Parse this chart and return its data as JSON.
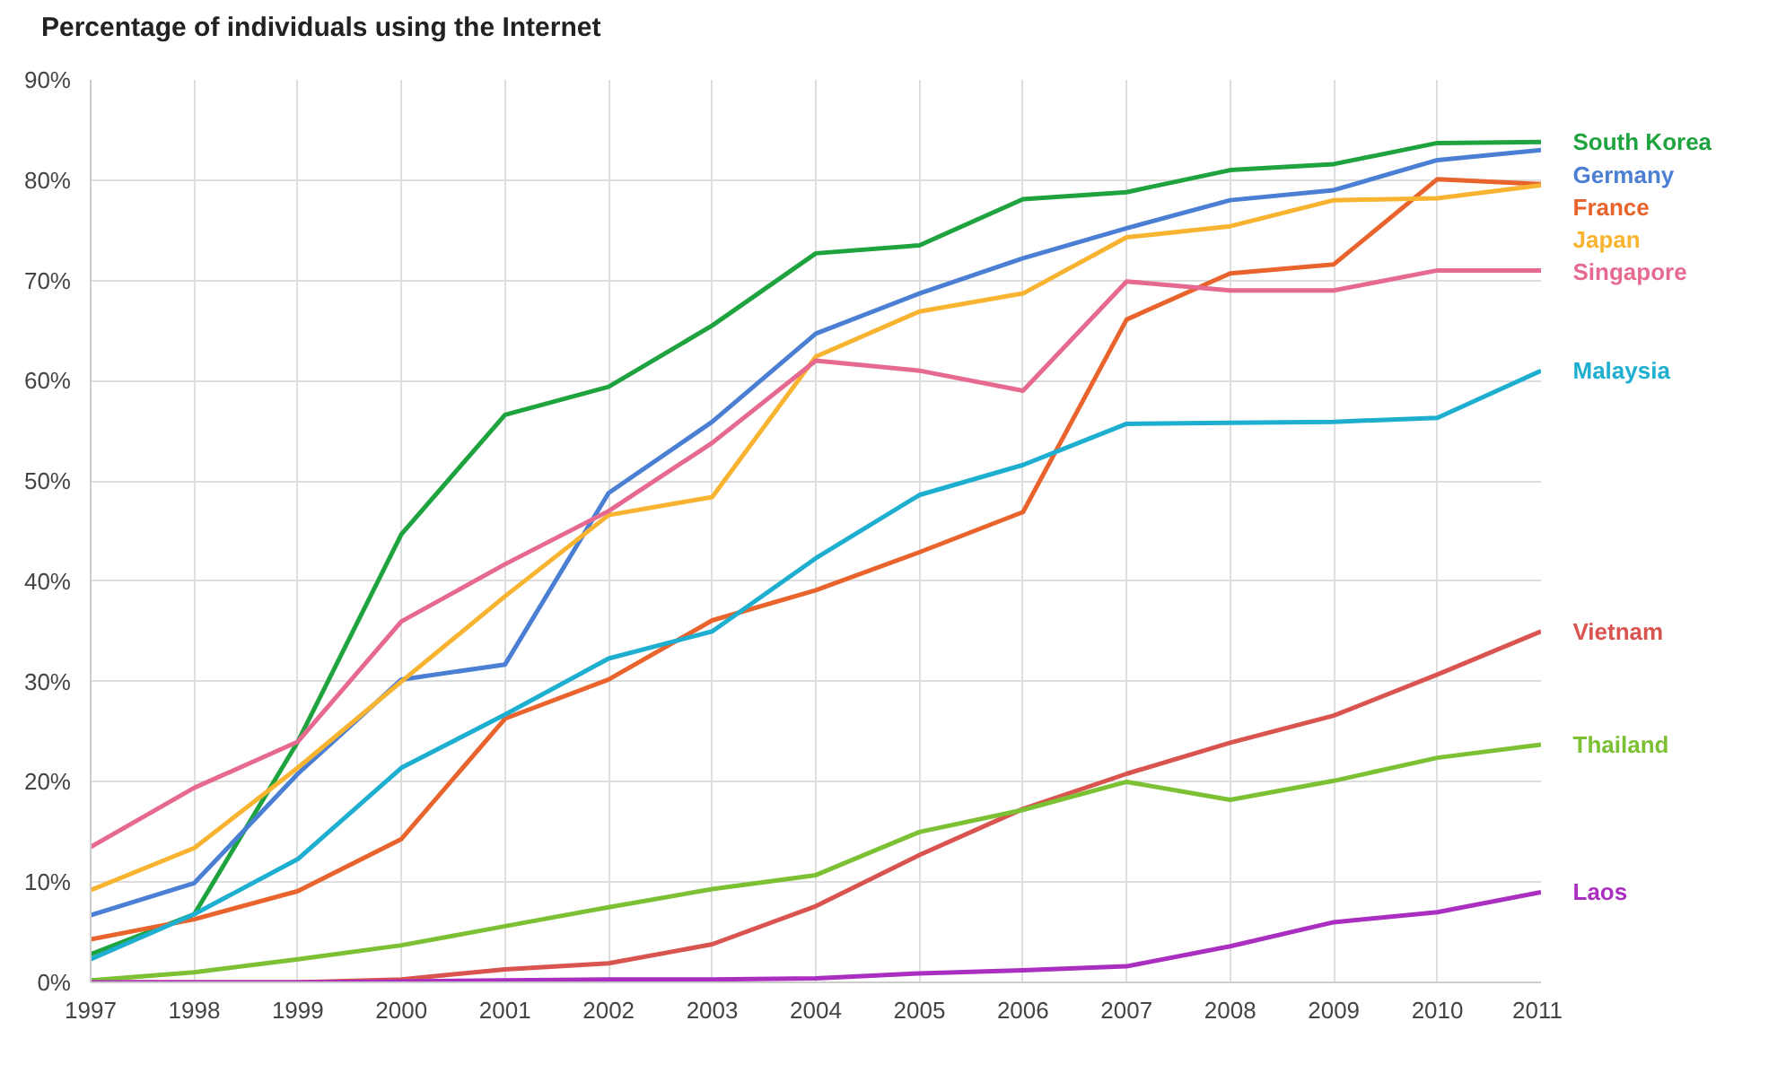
{
  "chart_data": {
    "type": "line",
    "title": "Percentage of individuals using the Internet",
    "x": [
      1997,
      1998,
      1999,
      2000,
      2001,
      2002,
      2003,
      2004,
      2005,
      2006,
      2007,
      2008,
      2009,
      2010,
      2011
    ],
    "xlim": [
      1997,
      2011
    ],
    "xticks": [
      1997,
      1998,
      1999,
      2000,
      2001,
      2002,
      2003,
      2004,
      2005,
      2006,
      2007,
      2008,
      2009,
      2010,
      2011
    ],
    "ylim": [
      0,
      90
    ],
    "yticks": [
      {
        "value": 0,
        "label": "0%"
      },
      {
        "value": 10,
        "label": "10%"
      },
      {
        "value": 20,
        "label": "20%"
      },
      {
        "value": 30,
        "label": "30%"
      },
      {
        "value": 40,
        "label": "40%"
      },
      {
        "value": 50,
        "label": "50%"
      },
      {
        "value": 60,
        "label": "60%"
      },
      {
        "value": 70,
        "label": "70%"
      },
      {
        "value": 80,
        "label": "80%"
      },
      {
        "value": 90,
        "label": "90%"
      }
    ],
    "grid": true,
    "legend": false,
    "marker": "none",
    "line_style": "solid",
    "series": [
      {
        "name": "South Korea",
        "color": "#1fa33f",
        "values": [
          2.8,
          6.8,
          24,
          44.7,
          56.6,
          59.4,
          65.5,
          72.7,
          73.5,
          78.1,
          78.8,
          81,
          81.6,
          83.7,
          83.8
        ]
      },
      {
        "name": "Germany",
        "color": "#4a7fd4",
        "values": [
          6.7,
          9.9,
          20.8,
          30.2,
          31.7,
          48.8,
          55.9,
          64.7,
          68.7,
          72.2,
          75.2,
          78,
          79,
          82,
          83
        ]
      },
      {
        "name": "France",
        "color": "#e8642c",
        "values": [
          4.3,
          6.3,
          9.1,
          14.3,
          26.3,
          30.2,
          36.1,
          39.1,
          42.9,
          46.9,
          66.1,
          70.7,
          71.6,
          80.1,
          79.6
        ]
      },
      {
        "name": "Japan",
        "color": "#f8b330",
        "values": [
          9.2,
          13.4,
          21.4,
          30,
          38.5,
          46.6,
          48.4,
          62.4,
          66.9,
          68.7,
          74.3,
          75.4,
          78,
          78.2,
          79.5
        ]
      },
      {
        "name": "Singapore",
        "color": "#e66a8f",
        "values": [
          13.5,
          19.4,
          24,
          36,
          41.7,
          47,
          53.8,
          62,
          61,
          59,
          69.9,
          69,
          69,
          71,
          71
        ]
      },
      {
        "name": "Malaysia",
        "color": "#1eaed0",
        "values": [
          2.3,
          6.8,
          12.3,
          21.4,
          26.7,
          32.3,
          35,
          42.3,
          48.6,
          51.6,
          55.7,
          55.8,
          55.9,
          56.3,
          61
        ]
      },
      {
        "name": "Vietnam",
        "color": "#d9534f",
        "values": [
          0,
          0,
          0,
          0.3,
          1.3,
          1.9,
          3.8,
          7.6,
          12.7,
          17.3,
          20.8,
          23.9,
          26.6,
          30.7,
          35
        ]
      },
      {
        "name": "Thailand",
        "color": "#7cc034",
        "values": [
          0.2,
          1,
          2.3,
          3.7,
          5.6,
          7.5,
          9.3,
          10.7,
          15,
          17.2,
          20,
          18.2,
          20.1,
          22.4,
          23.7
        ]
      },
      {
        "name": "Laos",
        "color": "#aa2fc0",
        "values": [
          0,
          0,
          0,
          0.1,
          0.2,
          0.3,
          0.3,
          0.4,
          0.9,
          1.2,
          1.6,
          3.6,
          6,
          7,
          9
        ]
      }
    ]
  }
}
